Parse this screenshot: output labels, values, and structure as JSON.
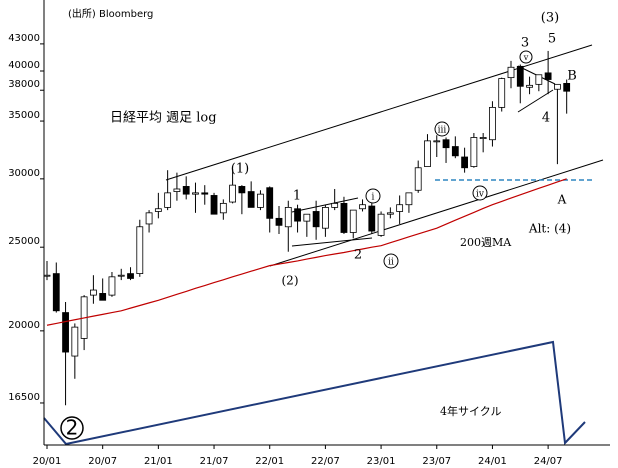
{
  "chart_data": {
    "type": "candlestick",
    "log_scale": true,
    "source": "(出所) Bloomberg",
    "title": "日経平均 週足 log",
    "categories": [
      "20/01",
      null,
      null,
      null,
      null,
      null,
      "20/07",
      null,
      null,
      null,
      null,
      null,
      "21/01",
      null,
      null,
      null,
      null,
      null,
      "21/07",
      null,
      null,
      null,
      null,
      null,
      "22/01",
      null,
      null,
      null,
      null,
      null,
      "22/07",
      null,
      null,
      null,
      null,
      null,
      "23/01",
      null,
      null,
      null,
      null,
      null,
      "23/07",
      null,
      null,
      null,
      null,
      null,
      "24/01",
      null,
      null,
      null,
      null,
      null,
      "24/07",
      null,
      null
    ],
    "open": [
      23200,
      23300,
      21000,
      18700,
      19600,
      22000,
      22100,
      22000,
      23200,
      23300,
      23300,
      26600,
      27500,
      27800,
      29000,
      29400,
      28800,
      28900,
      28700,
      27400,
      28200,
      29400,
      29000,
      27800,
      29300,
      27000,
      26400,
      27700,
      26800,
      27500,
      26300,
      27800,
      28100,
      26000,
      27700,
      27900,
      25800,
      27300,
      27500,
      28000,
      29100,
      31000,
      33200,
      33300,
      32700,
      31800,
      31000,
      33400,
      33300,
      36300,
      39300,
      40500,
      38300,
      38600,
      39800,
      38100,
      38700
    ],
    "high": [
      24100,
      24000,
      21600,
      20400,
      22000,
      23200,
      23000,
      23400,
      23600,
      23700,
      26900,
      27600,
      28900,
      30700,
      30500,
      30200,
      29700,
      29500,
      28900,
      28400,
      30800,
      29500,
      29800,
      29100,
      29400,
      27900,
      28300,
      28000,
      27300,
      28300,
      28000,
      29200,
      28600,
      27600,
      28400,
      28200,
      27500,
      27800,
      28700,
      28900,
      31500,
      33800,
      33700,
      33500,
      33600,
      32600,
      33900,
      33900,
      36900,
      39300,
      41100,
      40700,
      39400,
      39500,
      42200,
      38300,
      39100
    ],
    "low": [
      22900,
      21000,
      16400,
      17600,
      19000,
      21500,
      21700,
      21900,
      22900,
      22900,
      23100,
      26000,
      27000,
      27600,
      28300,
      28400,
      27400,
      28000,
      27300,
      26900,
      28100,
      27300,
      27800,
      27600,
      26000,
      25900,
      24700,
      26000,
      25700,
      25500,
      25700,
      27600,
      25900,
      25600,
      27500,
      25900,
      25700,
      27000,
      26600,
      27400,
      28900,
      31000,
      31800,
      31300,
      31700,
      30500,
      30900,
      32200,
      32700,
      35900,
      38200,
      36700,
      37600,
      37900,
      37600,
      31200,
      35700
    ],
    "close": [
      23200,
      21100,
      18900,
      20200,
      21900,
      22300,
      21700,
      23100,
      23200,
      23000,
      26400,
      27400,
      27700,
      28900,
      29200,
      28800,
      28900,
      28800,
      27300,
      28100,
      29500,
      28900,
      27800,
      28800,
      27000,
      26500,
      27800,
      26800,
      27300,
      26400,
      27800,
      28100,
      26000,
      27600,
      28000,
      26100,
      27300,
      27400,
      28000,
      28900,
      30900,
      33200,
      33200,
      32600,
      31900,
      30900,
      33500,
      33500,
      36300,
      39200,
      40400,
      38400,
      38500,
      39600,
      39100,
      38600,
      37900
    ],
    "series": [
      {
        "name": "200週MA",
        "color": "#c00000",
        "values": [
          20300,
          20400,
          20500,
          20600,
          20700,
          20800,
          20900,
          21000,
          21100,
          21250,
          21400,
          21550,
          21700,
          21870,
          22050,
          22220,
          22400,
          22570,
          22750,
          22920,
          23100,
          23270,
          23450,
          23620,
          23800,
          23900,
          24000,
          24100,
          24220,
          24330,
          24450,
          24550,
          24650,
          24770,
          24880,
          25000,
          25100,
          25300,
          25500,
          25700,
          25900,
          26100,
          26300,
          26580,
          26870,
          27150,
          27430,
          27720,
          28000,
          28250,
          28500,
          28750,
          29000,
          29250,
          29500,
          29750,
          30000
        ]
      }
    ],
    "ylim": [
      14750,
      47700
    ],
    "yticks": [
      16500,
      20000,
      25000,
      30000,
      35000,
      38000,
      40000,
      43000
    ],
    "annotations": [
      "(1)",
      "(2)",
      "1",
      "2",
      "i",
      "ii",
      "iii",
      "iv",
      "v",
      "3",
      "5",
      "(3)",
      "B",
      "4",
      "A",
      "Alt: (4)",
      "4年サイクル",
      "2"
    ]
  }
}
